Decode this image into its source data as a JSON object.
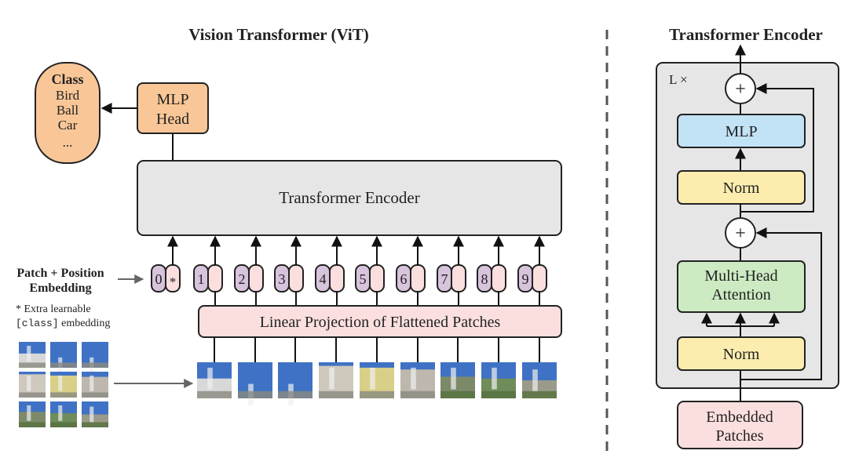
{
  "vit": {
    "title": "Vision Transformer (ViT)",
    "class_box": {
      "title": "Class",
      "items": [
        "Bird",
        "Ball",
        "Car",
        "..."
      ]
    },
    "mlp_head": [
      "MLP",
      "Head"
    ],
    "encoder_label": "Transformer Encoder",
    "embedding_label": [
      "Patch + Position",
      "Embedding"
    ],
    "note_line1": "* Extra learnable",
    "note_code": "[class]",
    "note_line2": " embedding",
    "tokens": [
      "0",
      "1",
      "2",
      "3",
      "4",
      "5",
      "6",
      "7",
      "8",
      "9"
    ],
    "class_token_mark": "*",
    "projection_label": "Linear Projection of Flattened Patches"
  },
  "encoder": {
    "title": "Transformer Encoder",
    "repeat_label": "L ×",
    "plus": "+",
    "mlp": "MLP",
    "norm": "Norm",
    "attention": [
      "Multi-Head",
      "Attention"
    ],
    "input": [
      "Embedded",
      "Patches"
    ]
  },
  "colors": {
    "orange": "#f9c797",
    "gray": "#e6e6e6",
    "purple": "#d7c3dc",
    "pink": "#fbdfdf",
    "blue": "#c2e2f5",
    "yellow": "#fcedae",
    "green": "#cdebc3"
  }
}
